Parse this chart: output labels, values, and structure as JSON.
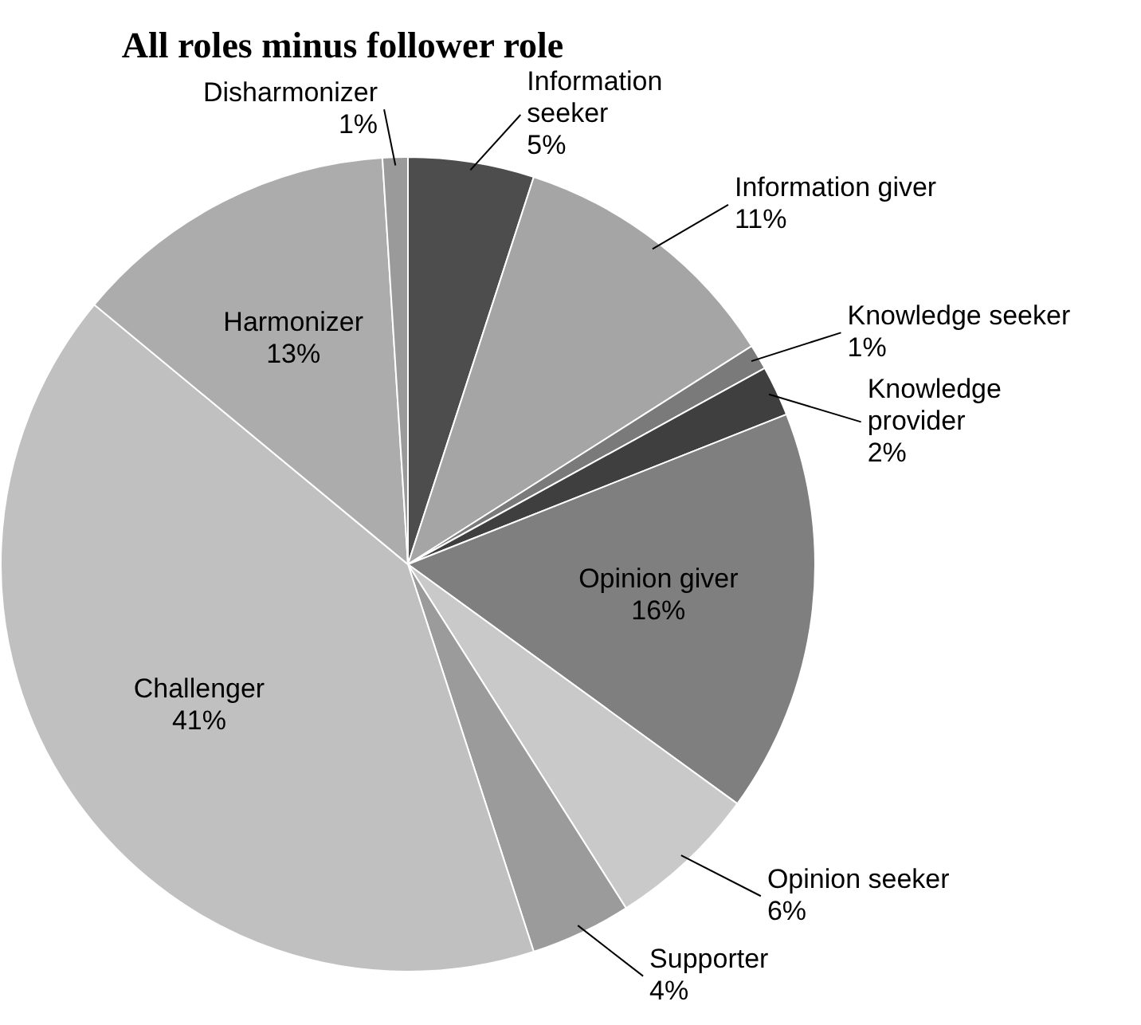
{
  "chart_data": {
    "type": "pie",
    "title": "All roles minus follower role",
    "categories": [
      "Information seeker",
      "Information giver",
      "Knowledge seeker",
      "Knowledge provider",
      "Opinion giver",
      "Opinion seeker",
      "Supporter",
      "Challenger",
      "Harmonizer",
      "Disharmonizer"
    ],
    "values": [
      5,
      11,
      1,
      2,
      16,
      6,
      4,
      41,
      13,
      1
    ],
    "value_labels": [
      "5%",
      "11%",
      "1%",
      "2%",
      "16%",
      "6%",
      "4%",
      "41%",
      "13%",
      "1%"
    ],
    "colors": [
      "#4d4d4d",
      "#a5a5a5",
      "#7a7a7a",
      "#3f3f3f",
      "#7f7f7f",
      "#c9c9c9",
      "#9b9b9b",
      "#c0c0c0",
      "#acacac",
      "#9a9a9a"
    ],
    "legend": false
  }
}
